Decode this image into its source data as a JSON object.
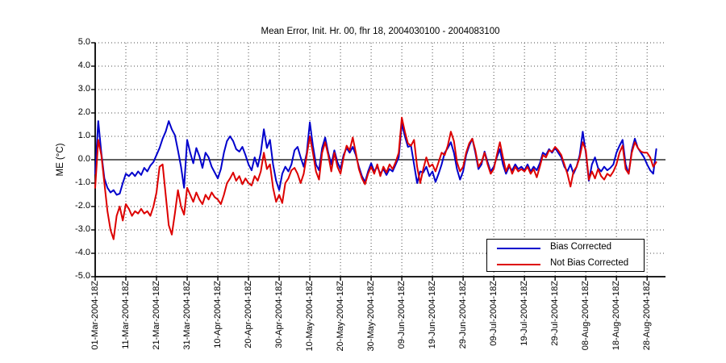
{
  "title": "Mean Error, Init. Hr. 00, fhr 18, 2004030100 - 2004083100",
  "axes": {
    "ylabel": "ME (°C)",
    "y_tick_labels": [
      "5.0",
      "4.0",
      "3.0",
      "2.0",
      "1.0",
      "0.0",
      "-1.0",
      "-2.0",
      "-3.0",
      "-4.0",
      "-5.0"
    ],
    "x_tick_labels": [
      "01-Mar-2004-18Z",
      "11-Mar-2004-18Z",
      "21-Mar-2004-18Z",
      "31-Mar-2004-18Z",
      "10-Apr-2004-18Z",
      "20-Apr-2004-18Z",
      "30-Apr-2004-18Z",
      "10-May-2004-18Z",
      "20-May-2004-18Z",
      "30-May-2004-18Z",
      "09-Jun-2004-18Z",
      "19-Jun-2004-18Z",
      "29-Jun-2004-18Z",
      "09-Jul-2004-18Z",
      "19-Jul-2004-18Z",
      "29-Jul-2004-18Z",
      "08-Aug-2004-18Z",
      "18-Aug-2004-18Z",
      "28-Aug-2004-18Z"
    ],
    "x_tick_days": [
      0,
      10,
      20,
      30,
      40,
      50,
      60,
      70,
      80,
      90,
      100,
      110,
      120,
      130,
      140,
      150,
      160,
      170,
      180
    ]
  },
  "legend": {
    "items": [
      {
        "label": "Bias Corrected",
        "color": "#0000cc"
      },
      {
        "label": "Not Bias Corrected",
        "color": "#dd0000"
      }
    ]
  },
  "chart_data": {
    "type": "line",
    "title": "Mean Error, Init. Hr. 00, fhr 18, 2004030100 - 2004083100",
    "xlabel": "",
    "ylabel": "ME (°C)",
    "ylim": [
      -5.0,
      5.0
    ],
    "xlim_days": [
      0,
      186
    ],
    "x_unit": "days since 01-Mar-2004 18Z, daily points",
    "grid": "dotted",
    "zero_line": true,
    "legend_position": "lower right",
    "series": [
      {
        "name": "Bias Corrected",
        "color": "#0000cc",
        "values": [
          -0.6,
          1.65,
          0.3,
          -0.8,
          -1.2,
          -1.4,
          -1.3,
          -1.5,
          -1.45,
          -1.0,
          -0.6,
          -0.7,
          -0.55,
          -0.7,
          -0.5,
          -0.65,
          -0.35,
          -0.5,
          -0.25,
          -0.1,
          0.2,
          0.5,
          0.9,
          1.2,
          1.65,
          1.3,
          1.05,
          0.4,
          -0.3,
          -1.2,
          0.85,
          0.3,
          -0.15,
          0.5,
          0.15,
          -0.35,
          0.3,
          0.1,
          -0.3,
          -0.55,
          -0.8,
          -0.4,
          0.3,
          0.8,
          1.0,
          0.8,
          0.45,
          0.35,
          0.55,
          0.2,
          -0.2,
          -0.45,
          0.1,
          -0.3,
          0.3,
          1.3,
          0.5,
          0.85,
          -0.2,
          -0.9,
          -1.3,
          -0.6,
          -0.3,
          -0.5,
          -0.2,
          0.4,
          0.55,
          0.1,
          -0.3,
          0.3,
          1.6,
          0.6,
          -0.2,
          -0.45,
          0.5,
          0.95,
          0.3,
          -0.2,
          0.4,
          -0.1,
          -0.4,
          0.2,
          0.5,
          0.3,
          0.55,
          0.2,
          -0.3,
          -0.7,
          -0.95,
          -0.5,
          -0.15,
          -0.5,
          -0.3,
          -0.6,
          -0.4,
          -0.65,
          -0.4,
          -0.5,
          -0.2,
          0.1,
          1.55,
          1.0,
          0.55,
          0.6,
          -0.2,
          -1.0,
          -0.5,
          -0.55,
          -0.3,
          -0.7,
          -0.5,
          -0.95,
          -0.6,
          -0.2,
          0.3,
          0.5,
          0.75,
          0.3,
          -0.4,
          -0.85,
          -0.5,
          0.2,
          0.6,
          0.9,
          0.3,
          -0.4,
          -0.2,
          0.35,
          -0.1,
          -0.5,
          -0.3,
          0.1,
          0.45,
          -0.2,
          -0.6,
          -0.3,
          -0.45,
          -0.2,
          -0.4,
          -0.3,
          -0.45,
          -0.2,
          -0.5,
          -0.3,
          -0.45,
          -0.15,
          0.3,
          0.2,
          0.45,
          0.3,
          0.5,
          0.3,
          0.1,
          -0.3,
          -0.5,
          -0.2,
          -0.6,
          -0.3,
          0.2,
          1.2,
          0.3,
          -0.9,
          -0.2,
          0.1,
          -0.35,
          -0.5,
          -0.3,
          -0.45,
          -0.35,
          -0.2,
          0.3,
          0.6,
          0.85,
          -0.2,
          -0.6,
          0.4,
          0.9,
          0.5,
          0.3,
          0.1,
          -0.2,
          -0.45,
          -0.6,
          0.45
        ]
      },
      {
        "name": "Not Bias Corrected",
        "color": "#dd0000",
        "values": [
          -1.2,
          0.85,
          0.2,
          -1.0,
          -2.2,
          -3.0,
          -3.4,
          -2.4,
          -2.0,
          -2.6,
          -1.9,
          -2.1,
          -2.4,
          -2.2,
          -2.3,
          -2.1,
          -2.3,
          -2.2,
          -2.4,
          -2.0,
          -1.4,
          -0.3,
          -0.2,
          -1.5,
          -2.8,
          -3.2,
          -2.3,
          -1.3,
          -2.0,
          -2.35,
          -1.2,
          -1.5,
          -1.8,
          -1.4,
          -1.7,
          -1.9,
          -1.5,
          -1.7,
          -1.4,
          -1.6,
          -1.7,
          -1.9,
          -1.5,
          -1.0,
          -0.8,
          -0.55,
          -0.9,
          -0.7,
          -1.05,
          -0.8,
          -1.0,
          -1.1,
          -0.7,
          -0.9,
          -0.5,
          0.3,
          -0.4,
          -0.2,
          -1.2,
          -1.8,
          -1.5,
          -1.85,
          -1.0,
          -0.8,
          -0.45,
          -0.35,
          -0.6,
          -1.0,
          -0.6,
          0.2,
          1.0,
          0.3,
          -0.5,
          -0.85,
          0.3,
          0.75,
          0.2,
          -0.5,
          0.3,
          -0.3,
          -0.6,
          0.1,
          0.6,
          0.4,
          0.95,
          0.3,
          -0.4,
          -0.8,
          -1.05,
          -0.6,
          -0.3,
          -0.6,
          -0.2,
          -0.7,
          -0.3,
          -0.55,
          -0.2,
          -0.4,
          -0.1,
          0.3,
          1.8,
          1.2,
          0.7,
          0.6,
          0.85,
          -0.3,
          -1.0,
          -0.4,
          0.1,
          -0.3,
          -0.2,
          -0.5,
          -0.1,
          0.3,
          0.2,
          0.6,
          1.2,
          0.8,
          -0.1,
          -0.5,
          -0.3,
          0.3,
          0.7,
          0.9,
          0.4,
          -0.3,
          -0.1,
          0.3,
          -0.2,
          -0.6,
          -0.4,
          0.2,
          0.75,
          0.1,
          -0.5,
          -0.2,
          -0.6,
          -0.3,
          -0.5,
          -0.4,
          -0.5,
          -0.3,
          -0.6,
          -0.4,
          -0.75,
          -0.3,
          0.2,
          0.1,
          0.4,
          0.35,
          0.55,
          0.4,
          0.2,
          -0.2,
          -0.6,
          -1.15,
          -0.5,
          -0.3,
          0.1,
          0.75,
          0.4,
          -0.85,
          -0.5,
          -0.8,
          -0.4,
          -0.7,
          -0.85,
          -0.6,
          -0.7,
          -0.5,
          -0.2,
          0.3,
          0.6,
          -0.4,
          -0.6,
          0.3,
          0.75,
          0.5,
          0.35,
          0.3,
          0.3,
          0.1,
          -0.3,
          -0.1
        ]
      }
    ]
  }
}
